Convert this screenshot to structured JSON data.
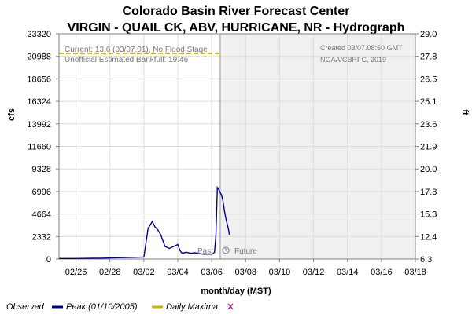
{
  "chart_data": {
    "type": "line",
    "title": "Colorado Basin River Forecast Center",
    "subtitle": "VIRGIN - QUAIL CK, ABV, HURRICANE, NR - Hydrograph",
    "xlabel": "month/day (MST)",
    "ylabel": "cfs",
    "y2label": "ft",
    "ylim": [
      0,
      23320
    ],
    "y2lim": [
      6.3,
      29.0
    ],
    "x_range": [
      "02/25",
      "03/18"
    ],
    "xticks": [
      "02/26",
      "02/28",
      "03/02",
      "03/04",
      "03/06",
      "03/08",
      "03/10",
      "03/12",
      "03/14",
      "03/16",
      "03/18"
    ],
    "yticks": [
      0,
      2332,
      4664,
      6996,
      9328,
      11660,
      13992,
      16324,
      18656,
      20988,
      23320
    ],
    "y2ticks": [
      "6.3",
      "12.4",
      "15.3",
      "17.8",
      "20.0",
      "21.9",
      "23.6",
      "25.1",
      "26.5",
      "27.8",
      "29.0"
    ],
    "grid": true,
    "legend_placement": "bottom",
    "bankfull": {
      "label": "Unofficial Estimated Bankfull: 19.46",
      "value": 21300,
      "color": "#c8b400"
    },
    "current_text": "Current: 13.6 (03/07.01), No Flood Stage",
    "created_text": "Created 03/07.08:50 GMT",
    "credit_text": "NOAA/CBRFC, 2019",
    "past_label": "Past",
    "future_label": "Future",
    "forecast_start": "03/06 12:00",
    "series": [
      {
        "name": "Observed",
        "color": "#000090",
        "x": [
          "02/25 00:00",
          "02/26 00:00",
          "02/27 00:00",
          "02/27 12:00",
          "02/28 00:00",
          "02/28 12:00",
          "03/01 00:00",
          "03/01 12:00",
          "03/02 00:00",
          "03/02 06:00",
          "03/02 08:00",
          "03/02 12:00",
          "03/02 16:00",
          "03/02 20:00",
          "03/03 00:00",
          "03/03 02:00",
          "03/03 04:00",
          "03/03 06:00",
          "03/03 12:00",
          "03/03 18:00",
          "03/04 00:00",
          "03/04 03:00",
          "03/04 06:00",
          "03/04 12:00",
          "03/04 18:00",
          "03/05 00:00",
          "03/05 12:00",
          "03/06 00:00",
          "03/06 04:00",
          "03/06 06:00",
          "03/06 08:00",
          "03/06 10:00",
          "03/06 12:00",
          "03/06 14:00",
          "03/06 16:00",
          "03/06 18:00",
          "03/06 20:00",
          "03/06 22:00",
          "03/07 00:00",
          "03/07 01:00"
        ],
        "values": [
          60,
          60,
          80,
          90,
          110,
          140,
          160,
          180,
          200,
          3200,
          3400,
          3900,
          3300,
          3000,
          2500,
          2100,
          1700,
          1300,
          1100,
          1300,
          1500,
          900,
          600,
          700,
          600,
          650,
          500,
          500,
          700,
          2500,
          7400,
          7200,
          6900,
          6600,
          6000,
          5000,
          4200,
          3600,
          3000,
          2500
        ]
      },
      {
        "name": "Peak (01/10/2005)",
        "color": "#000090"
      },
      {
        "name": "Daily Maxima",
        "color": "#c8b400"
      }
    ],
    "daily_maxima_marker_color": "#a020a0"
  }
}
